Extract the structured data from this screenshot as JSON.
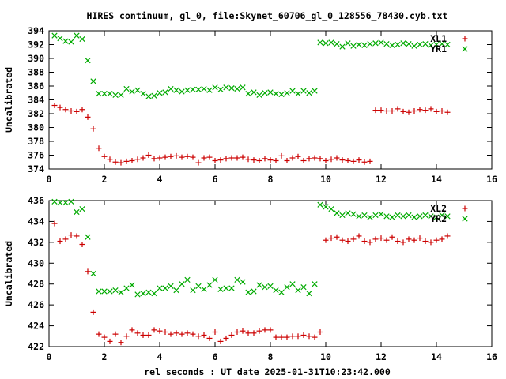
{
  "title": "HIRES continuum, gl_0, file:Skynet_60706_gl_0_128556_78430.cyb.txt",
  "xlabel": "rel seconds : UT date 2025-01-31T10:23:42.000",
  "chart_data": [
    {
      "type": "scatter",
      "ylabel": "Uncalibrated",
      "xlim": [
        0,
        16
      ],
      "ylim": [
        374,
        394
      ],
      "xticks": [
        0,
        2,
        4,
        6,
        8,
        10,
        12,
        14,
        16
      ],
      "yticks": [
        374,
        376,
        378,
        380,
        382,
        384,
        386,
        388,
        390,
        392,
        394
      ],
      "legend_position": "top-right",
      "series": [
        {
          "name": "XL1",
          "color": "#cc0000",
          "marker": "+",
          "x": [
            0.2,
            0.4,
            0.6,
            0.8,
            1.0,
            1.2,
            1.4,
            1.6,
            1.8,
            2.0,
            2.2,
            2.4,
            2.6,
            2.8,
            3.0,
            3.2,
            3.4,
            3.6,
            3.8,
            4.0,
            4.2,
            4.4,
            4.6,
            4.8,
            5.0,
            5.2,
            5.4,
            5.6,
            5.8,
            6.0,
            6.2,
            6.4,
            6.6,
            6.8,
            7.0,
            7.2,
            7.4,
            7.6,
            7.8,
            8.0,
            8.2,
            8.4,
            8.6,
            8.8,
            9.0,
            9.2,
            9.4,
            9.6,
            9.8,
            10.0,
            10.2,
            10.4,
            10.6,
            10.8,
            11.0,
            11.2,
            11.4,
            11.6,
            11.8,
            12.0,
            12.2,
            12.4,
            12.6,
            12.8,
            13.0,
            13.2,
            13.4,
            13.6,
            13.8,
            14.0,
            14.2,
            14.4
          ],
          "y": [
            383.2,
            382.9,
            382.6,
            382.4,
            382.3,
            382.6,
            381.5,
            379.8,
            377.0,
            375.8,
            375.4,
            375.0,
            374.9,
            375.1,
            375.2,
            375.4,
            375.6,
            376.0,
            375.5,
            375.6,
            375.7,
            375.8,
            375.9,
            375.7,
            375.8,
            375.7,
            374.9,
            375.6,
            375.7,
            375.2,
            375.3,
            375.5,
            375.6,
            375.6,
            375.7,
            375.4,
            375.3,
            375.2,
            375.5,
            375.3,
            375.2,
            375.9,
            375.2,
            375.6,
            375.8,
            375.2,
            375.5,
            375.6,
            375.5,
            375.2,
            375.4,
            375.6,
            375.3,
            375.2,
            375.1,
            375.3,
            375.0,
            375.1,
            382.5,
            382.5,
            382.4,
            382.4,
            382.7,
            382.3,
            382.2,
            382.4,
            382.6,
            382.5,
            382.7,
            382.3,
            382.4,
            382.2
          ],
          "note": ""
        },
        {
          "name": "YR1",
          "color": "#00aa00",
          "marker": "x",
          "x": [
            0.2,
            0.4,
            0.6,
            0.8,
            1.0,
            1.2,
            1.4,
            1.6,
            1.8,
            2.0,
            2.2,
            2.4,
            2.6,
            2.8,
            3.0,
            3.2,
            3.4,
            3.6,
            3.8,
            4.0,
            4.2,
            4.4,
            4.6,
            4.8,
            5.0,
            5.2,
            5.4,
            5.6,
            5.8,
            6.0,
            6.2,
            6.4,
            6.6,
            6.8,
            7.0,
            7.2,
            7.4,
            7.6,
            7.8,
            8.0,
            8.2,
            8.4,
            8.6,
            8.8,
            9.0,
            9.2,
            9.4,
            9.6,
            9.8,
            10.0,
            10.2,
            10.4,
            10.6,
            10.8,
            11.0,
            11.2,
            11.4,
            11.6,
            11.8,
            12.0,
            12.2,
            12.4,
            12.6,
            12.8,
            13.0,
            13.2,
            13.4,
            13.6,
            13.8,
            14.0,
            14.2,
            14.4
          ],
          "y": [
            393.3,
            392.9,
            392.5,
            392.4,
            393.3,
            392.8,
            389.7,
            386.7,
            384.9,
            384.9,
            384.9,
            384.7,
            384.7,
            385.6,
            385.2,
            385.4,
            384.9,
            384.5,
            384.6,
            385.0,
            385.1,
            385.6,
            385.4,
            385.2,
            385.4,
            385.5,
            385.5,
            385.6,
            385.4,
            385.8,
            385.5,
            385.8,
            385.7,
            385.6,
            385.8,
            384.9,
            385.1,
            384.7,
            385.0,
            385.1,
            384.9,
            384.8,
            385.0,
            385.3,
            384.9,
            385.3,
            385.0,
            385.3,
            392.3,
            392.2,
            392.3,
            392.1,
            391.7,
            392.2,
            391.8,
            392.0,
            391.9,
            392.1,
            392.2,
            392.3,
            392.1,
            391.9,
            392.0,
            392.2,
            392.1,
            391.8,
            392.0,
            392.1,
            391.9,
            392.0,
            392.1,
            392.0
          ]
        }
      ]
    },
    {
      "type": "scatter",
      "ylabel": "Uncalibrated",
      "xlim": [
        0,
        16
      ],
      "ylim": [
        422,
        436
      ],
      "xticks": [
        0,
        2,
        4,
        6,
        8,
        10,
        12,
        14,
        16
      ],
      "yticks": [
        422,
        424,
        426,
        428,
        430,
        432,
        434,
        436
      ],
      "legend_position": "top-right",
      "series": [
        {
          "name": "XL2",
          "color": "#cc0000",
          "marker": "+",
          "x": [
            0.2,
            0.4,
            0.6,
            0.8,
            1.0,
            1.2,
            1.4,
            1.6,
            1.8,
            2.0,
            2.2,
            2.4,
            2.6,
            2.8,
            3.0,
            3.2,
            3.4,
            3.6,
            3.8,
            4.0,
            4.2,
            4.4,
            4.6,
            4.8,
            5.0,
            5.2,
            5.4,
            5.6,
            5.8,
            6.0,
            6.2,
            6.4,
            6.6,
            6.8,
            7.0,
            7.2,
            7.4,
            7.6,
            7.8,
            8.0,
            8.2,
            8.4,
            8.6,
            8.8,
            9.0,
            9.2,
            9.4,
            9.6,
            9.8,
            10.0,
            10.2,
            10.4,
            10.6,
            10.8,
            11.0,
            11.2,
            11.4,
            11.6,
            11.8,
            12.0,
            12.2,
            12.4,
            12.6,
            12.8,
            13.0,
            13.2,
            13.4,
            13.6,
            13.8,
            14.0,
            14.2,
            14.4
          ],
          "y": [
            433.8,
            432.1,
            432.3,
            432.7,
            432.6,
            431.8,
            429.2,
            425.3,
            423.2,
            422.9,
            422.5,
            423.2,
            422.4,
            423.0,
            423.6,
            423.3,
            423.1,
            423.1,
            423.6,
            423.5,
            423.4,
            423.2,
            423.3,
            423.2,
            423.3,
            423.2,
            423.0,
            423.1,
            422.8,
            423.4,
            422.5,
            422.8,
            423.1,
            423.4,
            423.5,
            423.3,
            423.3,
            423.5,
            423.6,
            423.6,
            422.9,
            422.9,
            422.9,
            423.0,
            423.0,
            423.1,
            423.0,
            422.9,
            423.4,
            432.2,
            432.4,
            432.5,
            432.2,
            432.1,
            432.3,
            432.6,
            432.1,
            432.0,
            432.3,
            432.4,
            432.2,
            432.5,
            432.1,
            432.0,
            432.3,
            432.2,
            432.4,
            432.1,
            432.0,
            432.2,
            432.3,
            432.6
          ]
        },
        {
          "name": "YR2",
          "color": "#00aa00",
          "marker": "x",
          "x": [
            0.2,
            0.4,
            0.6,
            0.8,
            1.0,
            1.2,
            1.4,
            1.6,
            1.8,
            2.0,
            2.2,
            2.4,
            2.6,
            2.8,
            3.0,
            3.2,
            3.4,
            3.6,
            3.8,
            4.0,
            4.2,
            4.4,
            4.6,
            4.8,
            5.0,
            5.2,
            5.4,
            5.6,
            5.8,
            6.0,
            6.2,
            6.4,
            6.6,
            6.8,
            7.0,
            7.2,
            7.4,
            7.6,
            7.8,
            8.0,
            8.2,
            8.4,
            8.6,
            8.8,
            9.0,
            9.2,
            9.4,
            9.6,
            9.8,
            10.0,
            10.2,
            10.4,
            10.6,
            10.8,
            11.0,
            11.2,
            11.4,
            11.6,
            11.8,
            12.0,
            12.2,
            12.4,
            12.6,
            12.8,
            13.0,
            13.2,
            13.4,
            13.6,
            13.8,
            14.0,
            14.2,
            14.4
          ],
          "y": [
            435.9,
            435.8,
            435.8,
            435.9,
            434.9,
            435.2,
            432.5,
            429.0,
            427.3,
            427.3,
            427.3,
            427.4,
            427.2,
            427.6,
            427.9,
            427.0,
            427.1,
            427.2,
            427.1,
            427.6,
            427.6,
            427.8,
            427.4,
            428.0,
            428.4,
            427.4,
            427.8,
            427.5,
            427.9,
            428.4,
            427.5,
            427.6,
            427.6,
            428.4,
            428.2,
            427.2,
            427.3,
            427.9,
            427.7,
            427.8,
            427.4,
            427.2,
            427.7,
            428.0,
            427.4,
            427.7,
            427.1,
            428.0,
            435.6,
            435.4,
            435.2,
            434.8,
            434.6,
            434.8,
            434.7,
            434.5,
            434.6,
            434.4,
            434.6,
            434.7,
            434.5,
            434.4,
            434.6,
            434.5,
            434.6,
            434.4,
            434.5,
            434.6,
            434.5,
            434.4,
            434.6,
            434.5
          ]
        }
      ]
    }
  ]
}
